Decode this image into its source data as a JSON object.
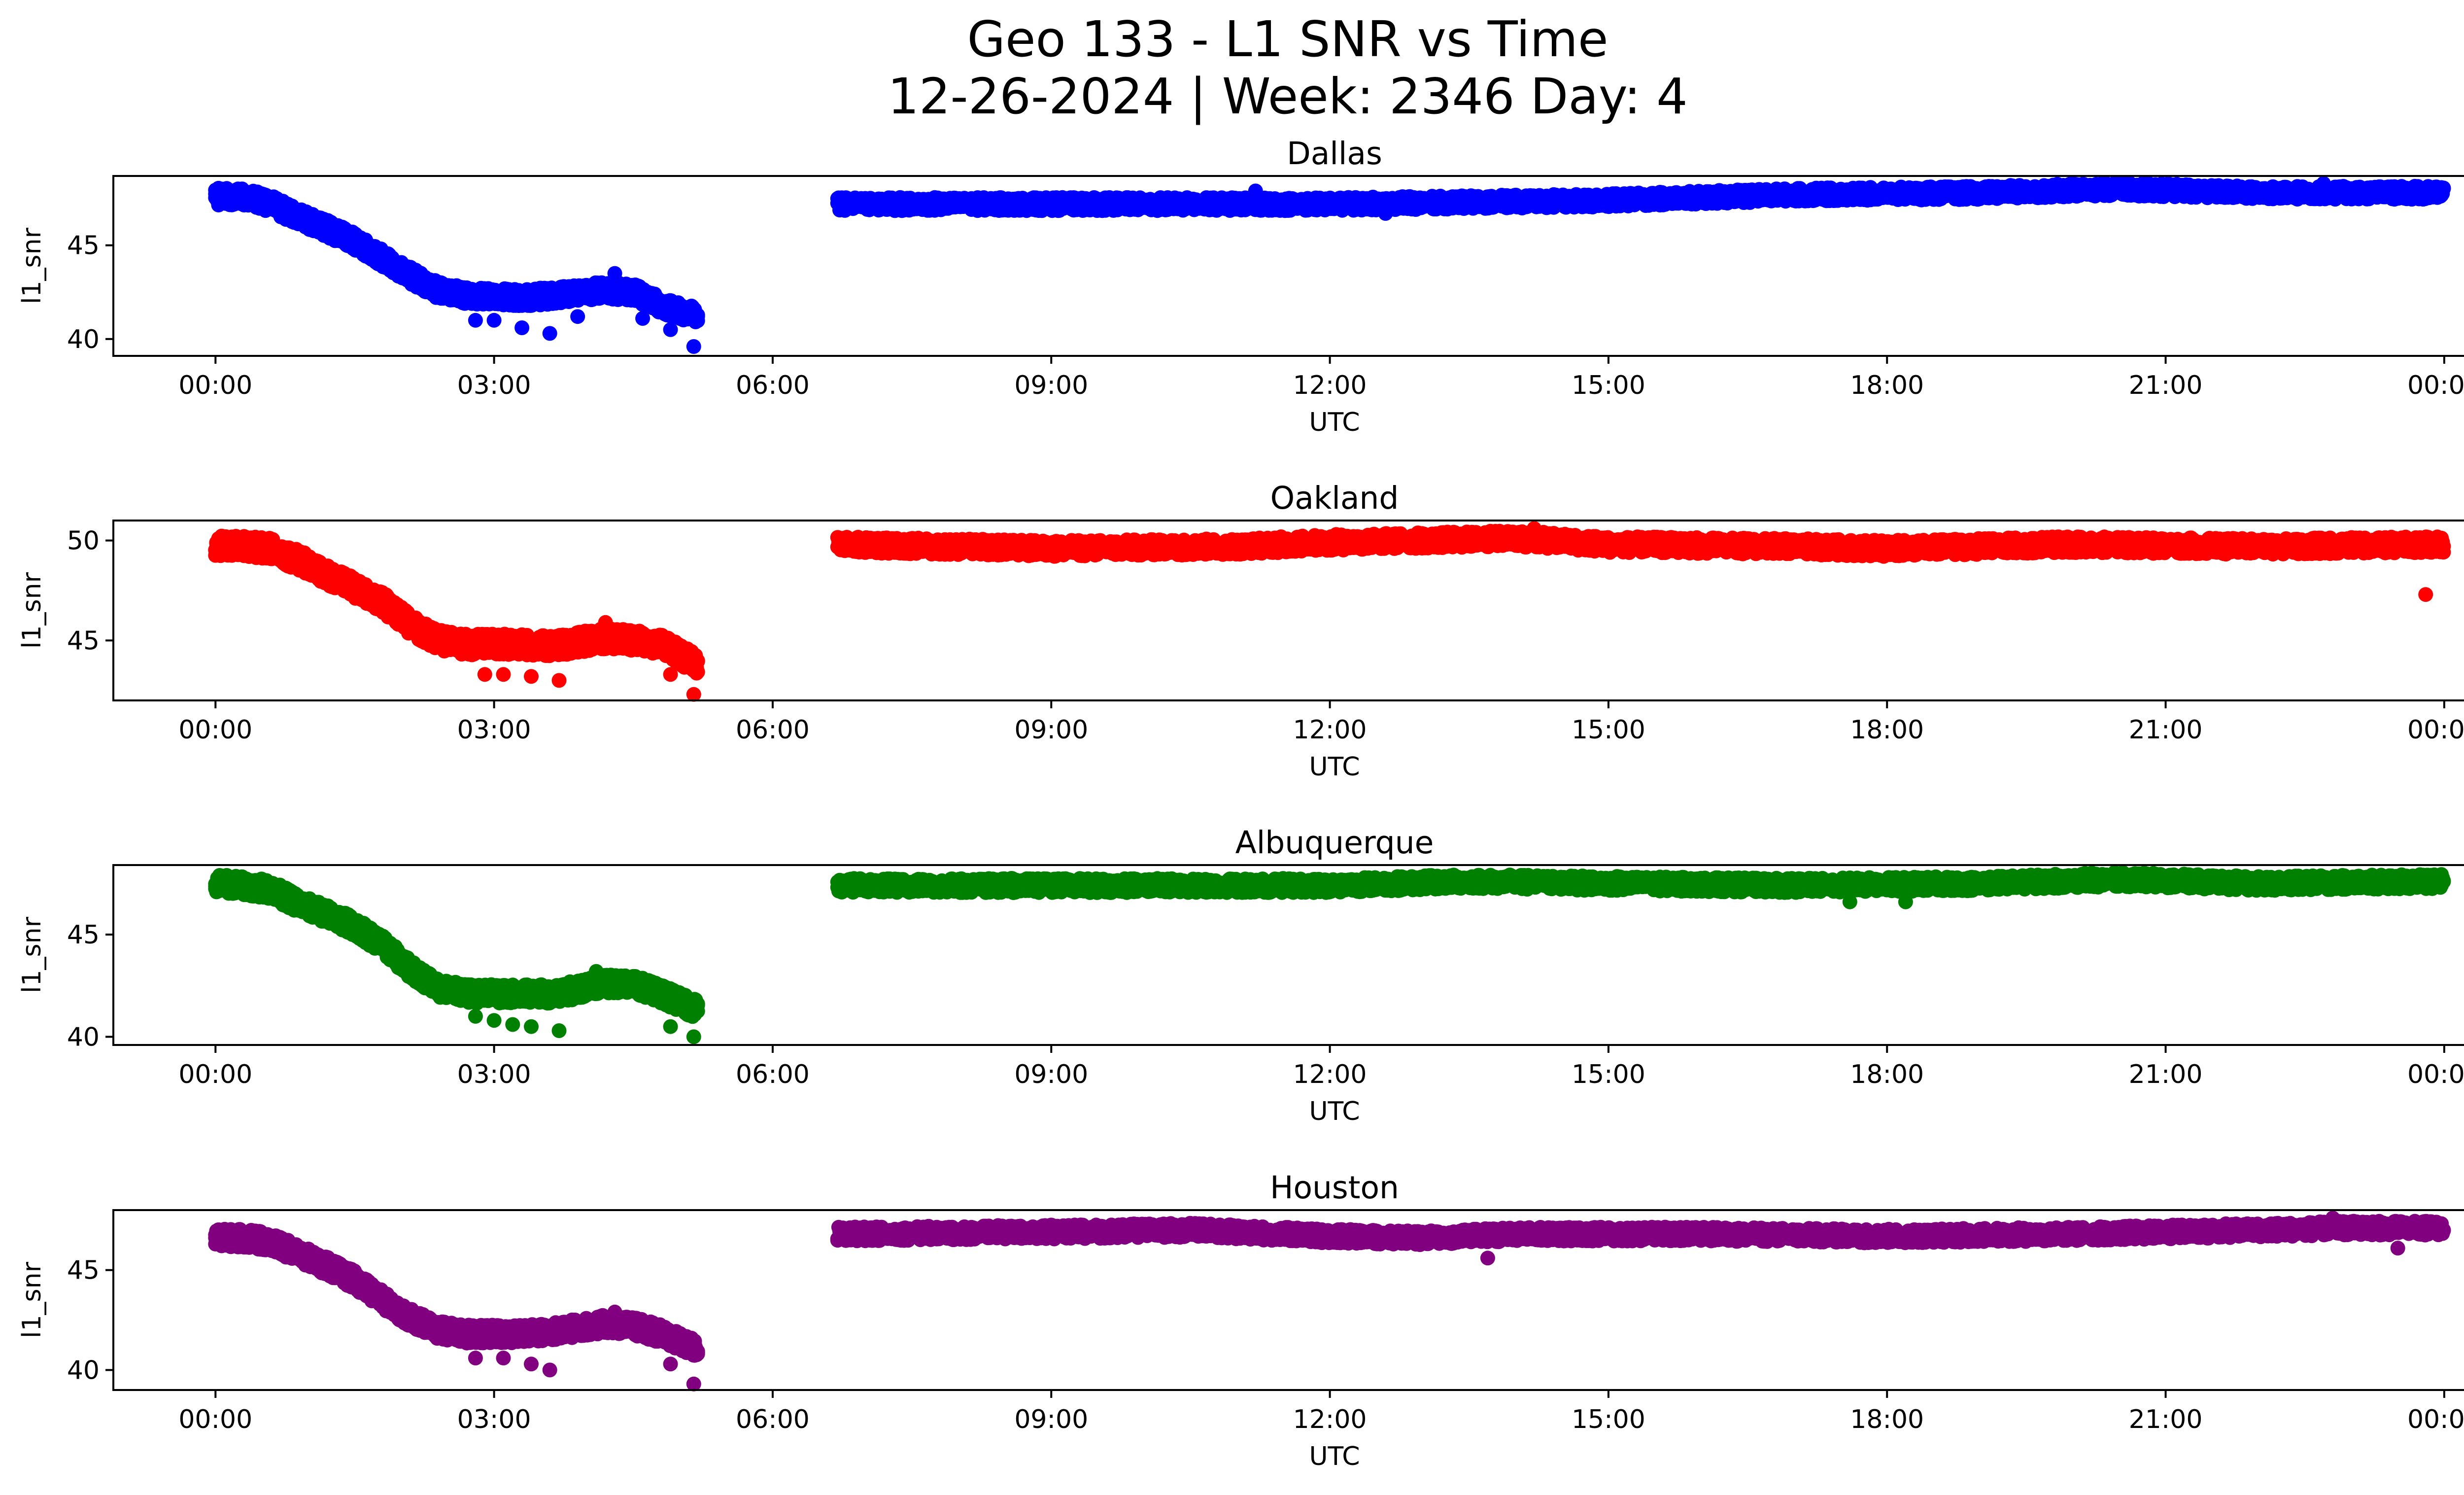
{
  "figure": {
    "title_line1": "Geo 133 - L1 SNR vs Time",
    "title_line2": "12-26-2024 | Week: 2346 Day: 4"
  },
  "chart_data": [
    {
      "type": "scatter",
      "title": "Dallas",
      "xlabel": "UTC",
      "ylabel": "l1_snr",
      "color": "#0000ff",
      "xticks": [
        "00:00",
        "03:00",
        "06:00",
        "09:00",
        "12:00",
        "15:00",
        "18:00",
        "21:00",
        "00:00"
      ],
      "yticks": [
        40,
        45
      ],
      "xlim_hours": [
        -1.1,
        25.2
      ],
      "ylim": [
        39.1,
        48.7
      ],
      "trend": [
        [
          0.0,
          47.6
        ],
        [
          0.3,
          47.6
        ],
        [
          0.6,
          47.2
        ],
        [
          0.9,
          46.5
        ],
        [
          1.2,
          45.9
        ],
        [
          1.5,
          45.2
        ],
        [
          1.8,
          44.3
        ],
        [
          2.1,
          43.4
        ],
        [
          2.4,
          42.6
        ],
        [
          2.7,
          42.3
        ],
        [
          3.0,
          42.3
        ],
        [
          3.3,
          42.2
        ],
        [
          3.6,
          42.3
        ],
        [
          3.9,
          42.5
        ],
        [
          4.2,
          42.6
        ],
        [
          4.5,
          42.5
        ],
        [
          4.8,
          41.8
        ],
        [
          5.2,
          41.2
        ],
        [
          6.7,
          47.2
        ],
        [
          9,
          47.2
        ],
        [
          12,
          47.2
        ],
        [
          13.5,
          47.3
        ],
        [
          15,
          47.4
        ],
        [
          17,
          47.7
        ],
        [
          19,
          47.8
        ],
        [
          20.5,
          48.0
        ],
        [
          22,
          47.8
        ],
        [
          24,
          47.8
        ]
      ],
      "spread": 0.35,
      "outliers": [
        [
          2.8,
          41.0
        ],
        [
          3.0,
          41.0
        ],
        [
          3.3,
          40.6
        ],
        [
          3.6,
          40.3
        ],
        [
          3.9,
          41.2
        ],
        [
          4.3,
          43.5
        ],
        [
          4.6,
          41.1
        ],
        [
          4.9,
          40.5
        ],
        [
          5.15,
          39.6
        ],
        [
          11.2,
          47.9
        ],
        [
          12.6,
          46.7
        ],
        [
          19.9,
          48.2
        ],
        [
          22.7,
          48.3
        ]
      ]
    },
    {
      "type": "scatter",
      "title": "Oakland",
      "xlabel": "UTC",
      "ylabel": "l1_snr",
      "color": "#ff0000",
      "xticks": [
        "00:00",
        "03:00",
        "06:00",
        "09:00",
        "12:00",
        "15:00",
        "18:00",
        "21:00",
        "00:00"
      ],
      "yticks": [
        45,
        50
      ],
      "xlim_hours": [
        -1.1,
        25.2
      ],
      "ylim": [
        42.0,
        51.0
      ],
      "trend": [
        [
          0.0,
          49.7
        ],
        [
          0.3,
          49.7
        ],
        [
          0.6,
          49.6
        ],
        [
          0.9,
          49.0
        ],
        [
          1.2,
          48.3
        ],
        [
          1.5,
          47.6
        ],
        [
          1.8,
          46.9
        ],
        [
          2.1,
          45.8
        ],
        [
          2.4,
          45.0
        ],
        [
          2.7,
          44.8
        ],
        [
          3.0,
          44.8
        ],
        [
          3.3,
          44.8
        ],
        [
          3.6,
          44.7
        ],
        [
          3.9,
          44.9
        ],
        [
          4.2,
          45.1
        ],
        [
          4.5,
          45.0
        ],
        [
          4.8,
          44.8
        ],
        [
          5.2,
          43.8
        ],
        [
          6.7,
          49.8
        ],
        [
          9,
          49.6
        ],
        [
          11,
          49.7
        ],
        [
          12,
          49.9
        ],
        [
          13,
          50.0
        ],
        [
          14,
          50.1
        ],
        [
          15,
          49.8
        ],
        [
          17,
          49.7
        ],
        [
          18,
          49.6
        ],
        [
          20,
          49.8
        ],
        [
          22,
          49.7
        ],
        [
          24,
          49.8
        ]
      ],
      "spread": 0.4,
      "outliers": [
        [
          2.9,
          43.3
        ],
        [
          3.1,
          43.3
        ],
        [
          3.4,
          43.2
        ],
        [
          3.7,
          43.0
        ],
        [
          4.2,
          45.9
        ],
        [
          4.9,
          43.3
        ],
        [
          5.15,
          42.3
        ],
        [
          14.2,
          50.6
        ],
        [
          23.8,
          47.3
        ]
      ]
    },
    {
      "type": "scatter",
      "title": "Albuquerque",
      "xlabel": "UTC",
      "ylabel": "l1_snr",
      "color": "#008000",
      "xticks": [
        "00:00",
        "03:00",
        "06:00",
        "09:00",
        "12:00",
        "15:00",
        "18:00",
        "21:00",
        "00:00"
      ],
      "yticks": [
        40,
        45
      ],
      "xlim_hours": [
        -1.1,
        25.2
      ],
      "ylim": [
        39.6,
        48.4
      ],
      "trend": [
        [
          0.0,
          47.5
        ],
        [
          0.3,
          47.4
        ],
        [
          0.6,
          47.2
        ],
        [
          0.9,
          46.5
        ],
        [
          1.2,
          46.0
        ],
        [
          1.5,
          45.4
        ],
        [
          1.8,
          44.5
        ],
        [
          2.1,
          43.3
        ],
        [
          2.4,
          42.4
        ],
        [
          2.7,
          42.1
        ],
        [
          3.0,
          42.1
        ],
        [
          3.3,
          42.1
        ],
        [
          3.6,
          42.1
        ],
        [
          3.9,
          42.3
        ],
        [
          4.2,
          42.6
        ],
        [
          4.5,
          42.6
        ],
        [
          4.8,
          42.1
        ],
        [
          5.2,
          41.3
        ],
        [
          6.7,
          47.4
        ],
        [
          9,
          47.4
        ],
        [
          12,
          47.4
        ],
        [
          13.5,
          47.6
        ],
        [
          15,
          47.5
        ],
        [
          17,
          47.4
        ],
        [
          19,
          47.5
        ],
        [
          20.5,
          47.7
        ],
        [
          22,
          47.5
        ],
        [
          24,
          47.6
        ]
      ],
      "spread": 0.35,
      "outliers": [
        [
          2.8,
          41.0
        ],
        [
          3.0,
          40.8
        ],
        [
          3.2,
          40.6
        ],
        [
          3.4,
          40.5
        ],
        [
          3.7,
          40.3
        ],
        [
          4.1,
          43.2
        ],
        [
          4.9,
          40.5
        ],
        [
          5.15,
          40.0
        ],
        [
          17.6,
          46.6
        ],
        [
          18.2,
          46.6
        ]
      ]
    },
    {
      "type": "scatter",
      "title": "Houston",
      "xlabel": "UTC",
      "ylabel": "l1_snr",
      "color": "#800080",
      "xticks": [
        "00:00",
        "03:00",
        "06:00",
        "09:00",
        "12:00",
        "15:00",
        "18:00",
        "21:00",
        "00:00"
      ],
      "yticks": [
        40,
        45
      ],
      "xlim_hours": [
        -1.1,
        25.2
      ],
      "ylim": [
        39.0,
        48.0
      ],
      "trend": [
        [
          0.0,
          46.6
        ],
        [
          0.3,
          46.6
        ],
        [
          0.6,
          46.4
        ],
        [
          0.9,
          45.8
        ],
        [
          1.2,
          45.2
        ],
        [
          1.5,
          44.5
        ],
        [
          1.8,
          43.5
        ],
        [
          2.1,
          42.6
        ],
        [
          2.4,
          42.0
        ],
        [
          2.7,
          41.8
        ],
        [
          3.0,
          41.8
        ],
        [
          3.3,
          41.8
        ],
        [
          3.6,
          41.9
        ],
        [
          3.9,
          42.1
        ],
        [
          4.2,
          42.3
        ],
        [
          4.5,
          42.2
        ],
        [
          4.8,
          41.8
        ],
        [
          5.2,
          41.0
        ],
        [
          6.7,
          46.8
        ],
        [
          9,
          46.9
        ],
        [
          10.5,
          47.0
        ],
        [
          12,
          46.7
        ],
        [
          13,
          46.6
        ],
        [
          14,
          46.8
        ],
        [
          16,
          46.8
        ],
        [
          18,
          46.7
        ],
        [
          20,
          46.8
        ],
        [
          22,
          47.0
        ],
        [
          23,
          47.1
        ],
        [
          24,
          47.1
        ]
      ],
      "spread": 0.35,
      "outliers": [
        [
          2.8,
          40.6
        ],
        [
          3.1,
          40.6
        ],
        [
          3.4,
          40.3
        ],
        [
          3.6,
          40.0
        ],
        [
          4.3,
          42.9
        ],
        [
          4.9,
          40.3
        ],
        [
          5.15,
          39.3
        ],
        [
          13.7,
          45.6
        ],
        [
          22.8,
          47.6
        ],
        [
          23.5,
          46.1
        ]
      ]
    }
  ]
}
